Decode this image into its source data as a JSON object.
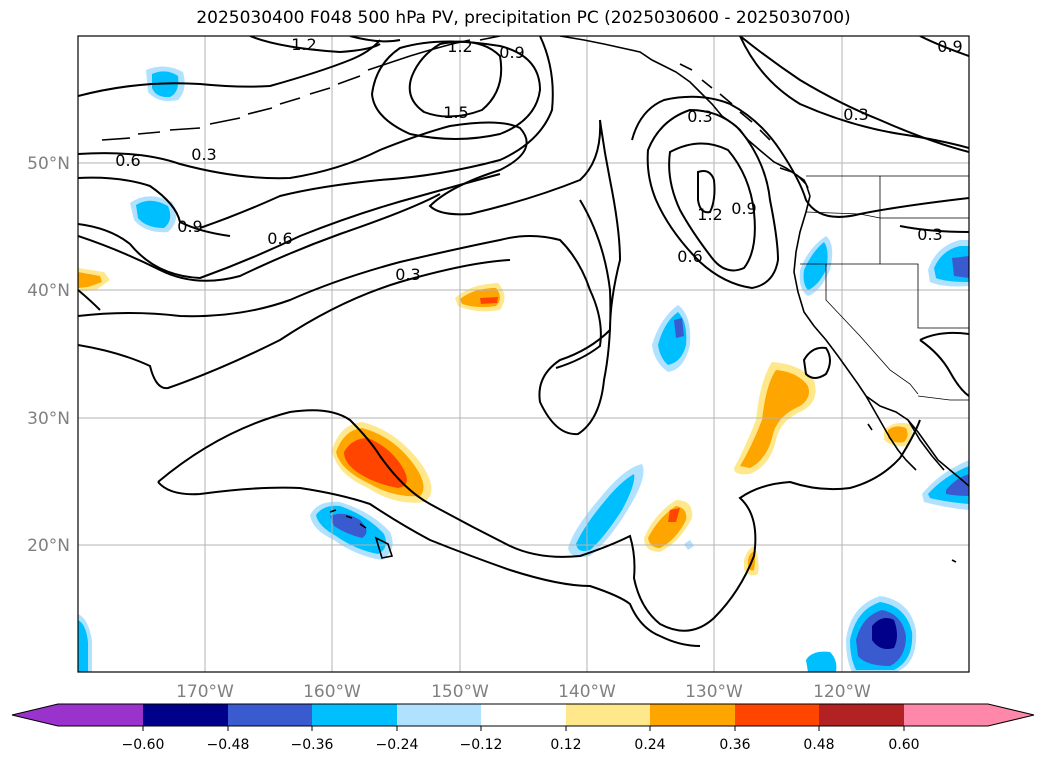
{
  "title": "2025030400 F048 500 hPa PV, precipitation PC (2025030600 - 2025030700)",
  "map": {
    "lon_ticks": [
      "170°W",
      "160°W",
      "150°W",
      "140°W",
      "130°W",
      "120°W"
    ],
    "lat_ticks": [
      "50°N",
      "40°N",
      "30°N",
      "20°N"
    ]
  },
  "contour_labels": [
    "1.2",
    "1.2",
    "0.9",
    "1.5",
    "0.3",
    "0.6",
    "0.3",
    "0.9",
    "0.6",
    "0.3",
    "1.2",
    "0.9",
    "0.6",
    "0.3",
    "0.3",
    "0.9"
  ],
  "colorbar": {
    "ticks": [
      "−0.60",
      "−0.48",
      "−0.36",
      "−0.24",
      "−0.12",
      "0.12",
      "0.24",
      "0.36",
      "0.48",
      "0.60"
    ],
    "colors": [
      "#9933cc",
      "#00008b",
      "#3a5bd0",
      "#00bfff",
      "#b0e2ff",
      "#ffffff",
      "#ffe88c",
      "#ffa500",
      "#ff4500",
      "#b22222",
      "#ff88aa"
    ]
  },
  "colors": {
    "neg_light": "#b0e2ff",
    "neg_mid": "#00bfff",
    "neg_strong": "#3a5bd0",
    "pos_light": "#ffe88c",
    "pos_mid": "#ffa500",
    "pos_strong": "#ff4500"
  }
}
